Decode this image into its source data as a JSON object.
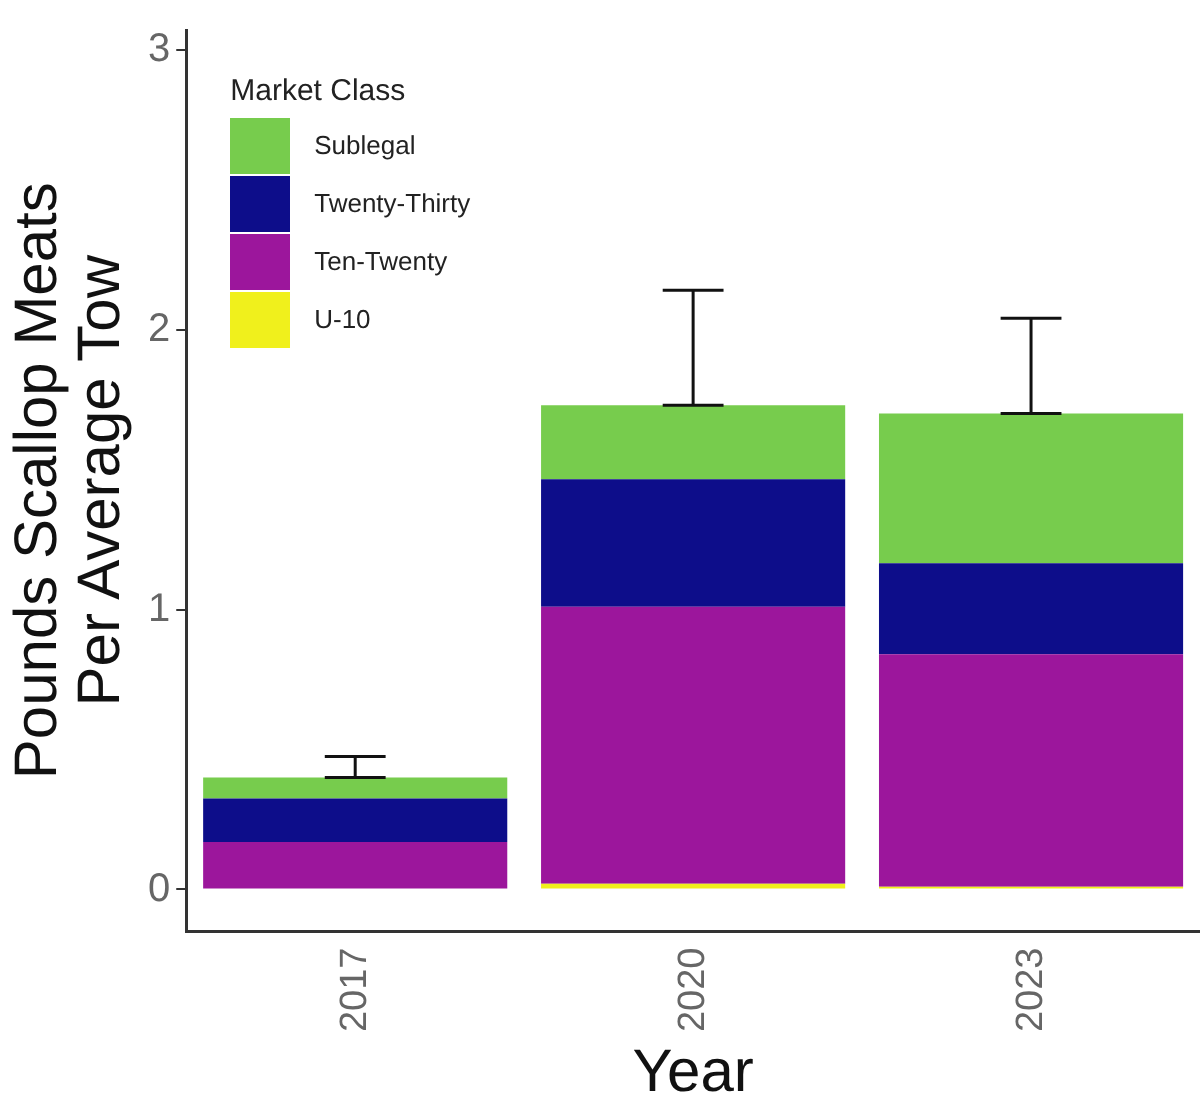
{
  "chart_data": {
    "type": "bar",
    "stacked": true,
    "xlabel": "Year",
    "ylabel": "Pounds Scallop Meats Per Average Tow",
    "legend_title": "Market Class",
    "legend": "top left",
    "grid": false,
    "categories": [
      "2017",
      "2020",
      "2023"
    ],
    "ylim": [
      -0.15,
      3.07
    ],
    "yticks": [
      0,
      1,
      2,
      3
    ],
    "series": [
      {
        "name": "U-10",
        "color": "#f0f01c",
        "values": [
          0,
          0.02,
          0.01
        ]
      },
      {
        "name": "Ten-Twenty",
        "color": "#9c169c",
        "values": [
          0.17,
          0.99,
          0.83
        ]
      },
      {
        "name": "Twenty-Thirty",
        "color": "#0d0d8a",
        "values": [
          0.155,
          0.455,
          0.325
        ]
      },
      {
        "name": "Sublegal",
        "color": "#77cc4d",
        "values": [
          0.075,
          0.265,
          0.535
        ],
        "errors": [
          [
            0.4,
            0.475
          ],
          [
            1.73,
            2.14
          ],
          [
            1.7,
            2.04
          ]
        ]
      }
    ]
  }
}
